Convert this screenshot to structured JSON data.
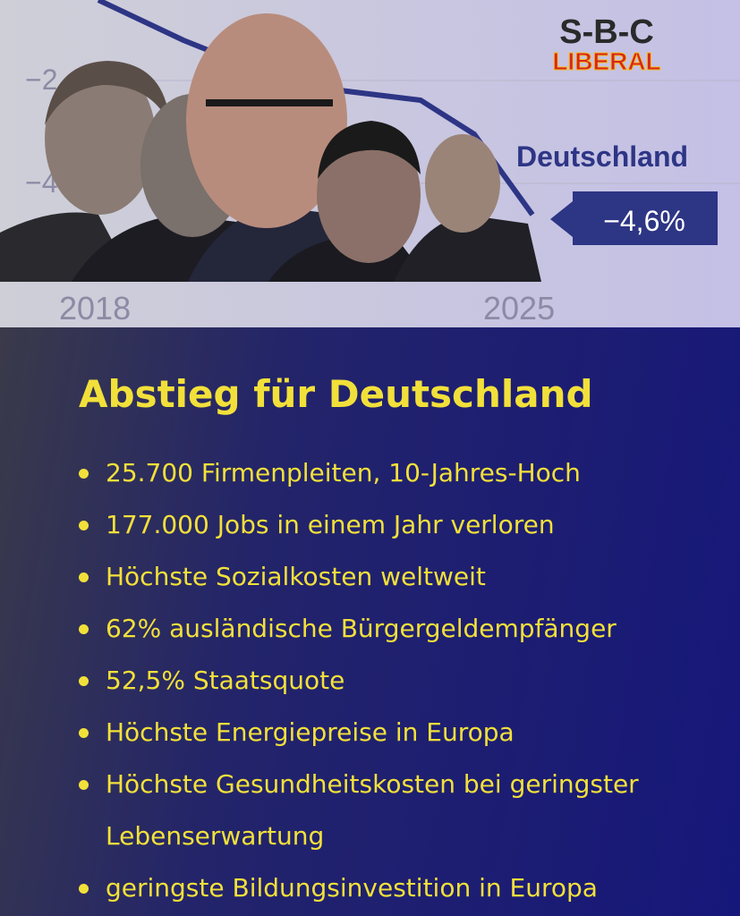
{
  "chart": {
    "y_labels": [
      "−2",
      "−4"
    ],
    "x_labels": [
      "2018",
      "2025"
    ],
    "series_label": "Deutschland",
    "value_label": "−4,6%"
  },
  "logo": {
    "line1": "S-B-C",
    "line2": "LIBERAL"
  },
  "body": {
    "title": "Abstieg für Deutschland",
    "bullets": [
      "25.700 Firmenpleiten, 10-Jahres-Hoch",
      "177.000 Jobs in einem Jahr verloren",
      "Höchste Sozialkosten weltweit",
      "62% ausländische Bürgergeldempfänger",
      "52,5% Staatsquote",
      "Höchste Energiepreise in Europa",
      "Höchste Gesundheitskosten bei geringster Lebenserwartung",
      "geringste Bildungsinvestition in Europa"
    ]
  }
}
